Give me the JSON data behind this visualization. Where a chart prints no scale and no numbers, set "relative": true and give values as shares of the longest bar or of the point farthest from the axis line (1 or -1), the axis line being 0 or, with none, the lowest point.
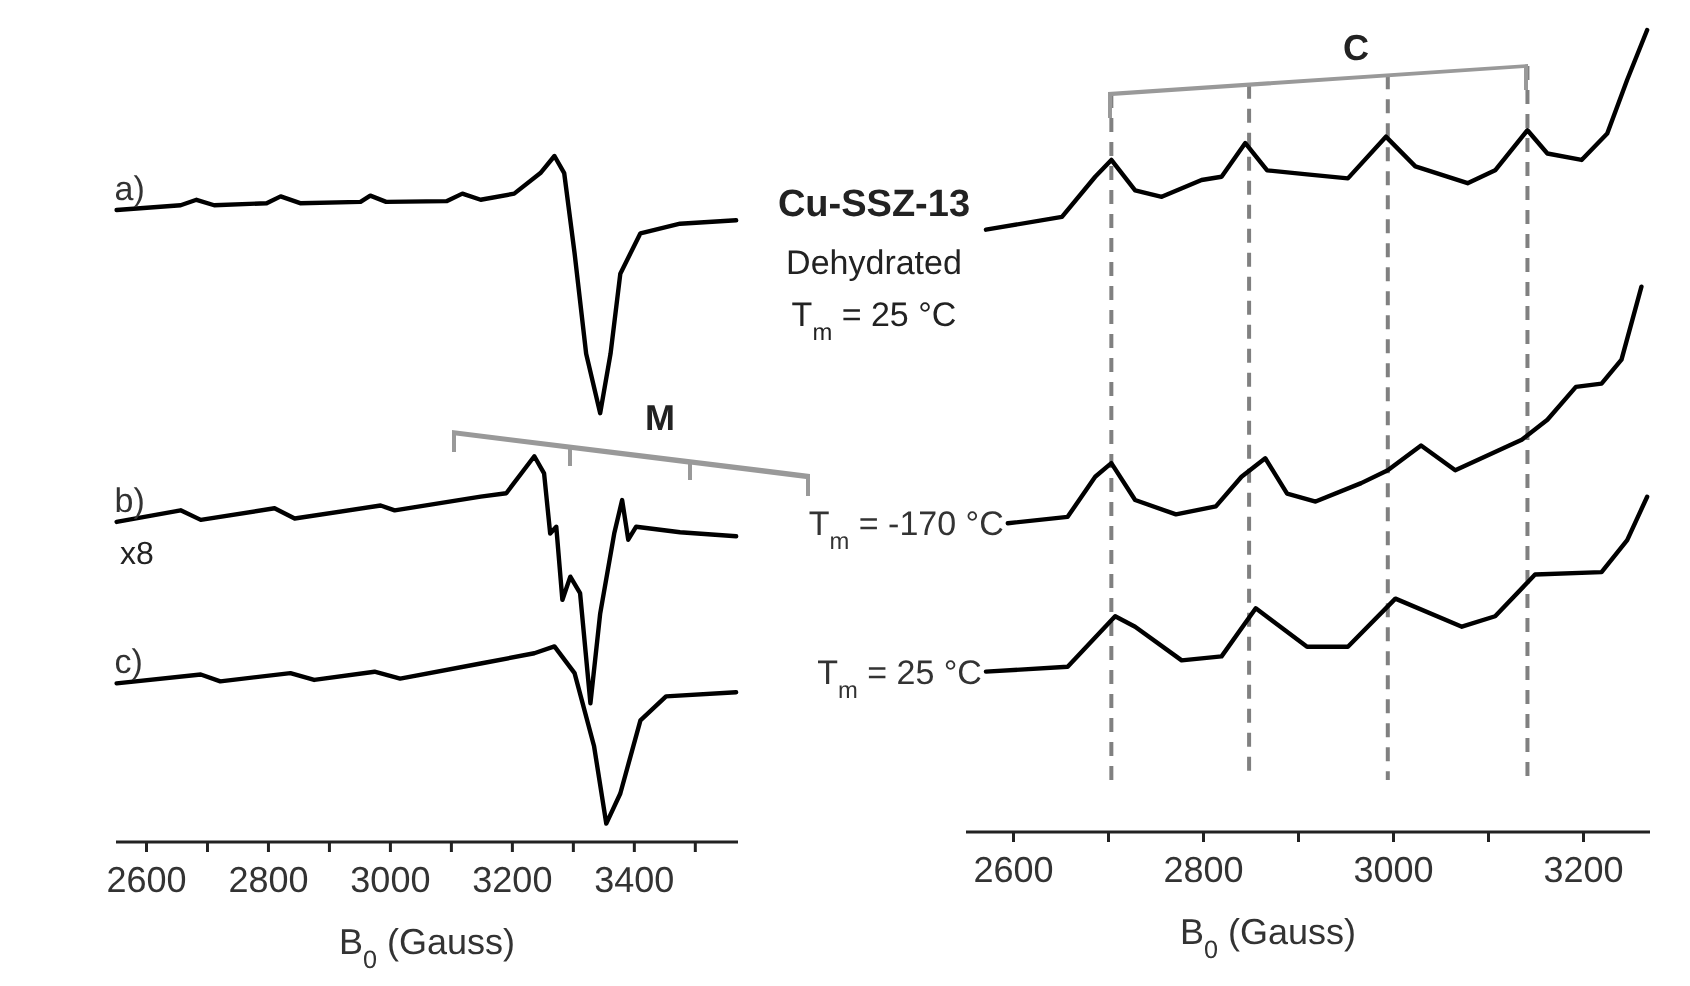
{
  "chart_data": [
    {
      "type": "line",
      "relative": true,
      "xlabel": "B$_{0}$ (Gauss)",
      "xlim": [
        2550,
        3570
      ],
      "xticks": [
        2600,
        {
          "value": 2700,
          "label": null
        },
        2800,
        {
          "value": 2900,
          "label": null
        },
        3000,
        {
          "value": 3100,
          "label": null
        },
        3200,
        {
          "value": 3300,
          "label": null
        },
        3400,
        {
          "value": 3500,
          "label": null
        }
      ],
      "color": "#000000",
      "annotations": [
        "M",
        "x8"
      ],
      "series": [
        {
          "name": "a)",
          "x": [
            2551,
            2656,
            2682,
            2711,
            2797,
            2820,
            2852,
            2951,
            2967,
            2993,
            3092,
            3118,
            3148,
            3203,
            3246,
            3269,
            3285,
            3302,
            3321,
            3344,
            3361,
            3377,
            3410,
            3475,
            3567
          ],
          "values": [
            0.921,
            0.928,
            0.936,
            0.928,
            0.931,
            0.941,
            0.931,
            0.933,
            0.942,
            0.933,
            0.934,
            0.945,
            0.936,
            0.945,
            0.975,
            1.0,
            0.975,
            0.858,
            0.711,
            0.624,
            0.711,
            0.828,
            0.887,
            0.901,
            0.906
          ]
        },
        {
          "name": "b)",
          "x": [
            2551,
            2656,
            2689,
            2810,
            2843,
            2984,
            3007,
            3148,
            3190,
            3236,
            3252,
            3262,
            3272,
            3282,
            3295,
            3311,
            3328,
            3344,
            3367,
            3380,
            3390,
            3403,
            3475,
            3567
          ],
          "values": [
            0.465,
            0.482,
            0.468,
            0.485,
            0.47,
            0.489,
            0.482,
            0.502,
            0.507,
            0.561,
            0.536,
            0.448,
            0.458,
            0.351,
            0.385,
            0.361,
            0.2,
            0.331,
            0.448,
            0.497,
            0.439,
            0.458,
            0.45,
            0.444
          ]
        },
        {
          "name": "c)",
          "x": [
            2551,
            2689,
            2721,
            2836,
            2875,
            2974,
            3016,
            3148,
            3236,
            3269,
            3302,
            3334,
            3354,
            3377,
            3410,
            3452,
            3567
          ],
          "values": [
            0.229,
            0.242,
            0.232,
            0.244,
            0.234,
            0.246,
            0.236,
            0.258,
            0.273,
            0.283,
            0.244,
            0.137,
            0.024,
            0.068,
            0.175,
            0.21,
            0.216
          ]
        }
      ]
    },
    {
      "type": "line",
      "relative": true,
      "xlabel": "B$_{0}$ (Gauss)",
      "xlim": [
        2550,
        3270
      ],
      "xticks": [
        2600,
        {
          "value": 2700,
          "label": null
        },
        2800,
        {
          "value": 2900,
          "label": null
        },
        3000,
        {
          "value": 3100,
          "label": null
        },
        3200
      ],
      "color": "#000000",
      "annotations": [
        "C",
        "Cu-SSZ-13",
        "Dehydrated",
        "T$_{m}$ = 25 °C"
      ],
      "ref_lines": [
        {
          "axis": "x",
          "value": 2703,
          "color": "#808080",
          "line_style": "dashed"
        },
        {
          "axis": "x",
          "value": 2848,
          "color": "#808080",
          "line_style": "dashed"
        },
        {
          "axis": "x",
          "value": 2994,
          "color": "#808080",
          "line_style": "dashed"
        },
        {
          "axis": "x",
          "value": 3141,
          "color": "#808080",
          "line_style": "dashed"
        }
      ],
      "series": [
        {
          "x": [
            2571,
            2651,
            2686,
            2703,
            2728,
            2756,
            2798,
            2819,
            2844,
            2867,
            2909,
            2952,
            2992,
            3023,
            3078,
            3107,
            3141,
            3162,
            3198,
            3225,
            3246,
            3267
          ],
          "values": [
            0.751,
            0.767,
            0.817,
            0.838,
            0.8,
            0.792,
            0.813,
            0.817,
            0.859,
            0.825,
            0.82,
            0.815,
            0.867,
            0.83,
            0.809,
            0.825,
            0.875,
            0.846,
            0.838,
            0.871,
            0.938,
            1.0
          ]
        },
        {
          "name": "T$_{m}$ = -170 °C",
          "x": [
            2594,
            2657,
            2686,
            2703,
            2728,
            2771,
            2813,
            2840,
            2865,
            2888,
            2918,
            2966,
            2994,
            3029,
            3065,
            3135,
            3162,
            3192,
            3219,
            3240,
            3261
          ],
          "values": [
            0.385,
            0.393,
            0.443,
            0.46,
            0.414,
            0.396,
            0.406,
            0.443,
            0.466,
            0.422,
            0.412,
            0.435,
            0.451,
            0.482,
            0.451,
            0.489,
            0.514,
            0.555,
            0.559,
            0.589,
            0.68
          ]
        },
        {
          "name": "T$_{m}$ = 25 °C",
          "x": [
            2571,
            2657,
            2707,
            2728,
            2777,
            2819,
            2855,
            2909,
            2952,
            3002,
            3072,
            3107,
            3149,
            3219,
            3246,
            3267
          ],
          "values": [
            0.2,
            0.206,
            0.269,
            0.256,
            0.214,
            0.219,
            0.279,
            0.231,
            0.231,
            0.291,
            0.256,
            0.269,
            0.321,
            0.324,
            0.364,
            0.418
          ]
        }
      ]
    }
  ]
}
